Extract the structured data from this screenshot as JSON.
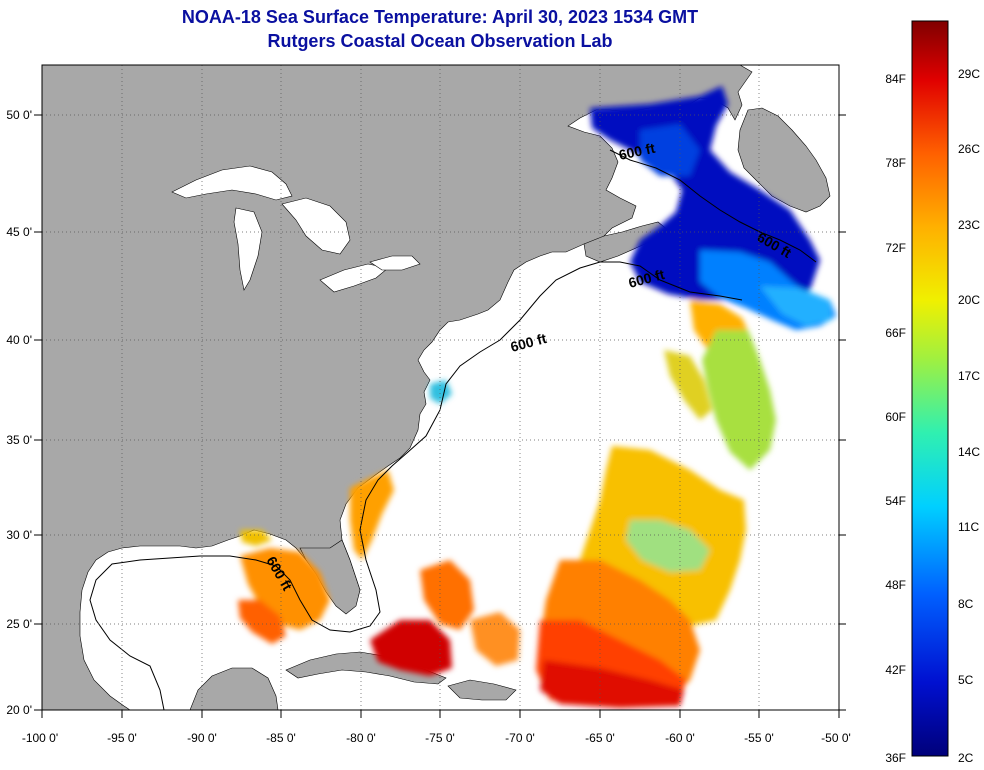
{
  "title": {
    "line1": "NOAA-18 Sea Surface Temperature:  April 30, 2023 1534 GMT",
    "line2": "Rutgers Coastal Ocean Observation Lab"
  },
  "axes": {
    "longitude_ticks": [
      "-100 0'",
      "-95 0'",
      "-90 0'",
      "-85 0'",
      "-80 0'",
      "-75 0'",
      "-70 0'",
      "-65 0'",
      "-60 0'",
      "-55 0'",
      "-50 0'"
    ],
    "latitude_ticks": [
      "50 0'",
      "45 0'",
      "40 0'",
      "35 0'",
      "30 0'",
      "25 0'",
      "20 0'"
    ],
    "lon_range": [
      -100,
      -50
    ],
    "lat_range": [
      20,
      52
    ],
    "grid": "dotted"
  },
  "colorbar": {
    "fahrenheit_labels": [
      "84F",
      "78F",
      "72F",
      "66F",
      "60F",
      "54F",
      "48F",
      "42F",
      "36F"
    ],
    "celsius_labels": [
      "29C",
      "26C",
      "23C",
      "20C",
      "17C",
      "14C",
      "11C",
      "8C",
      "5C",
      "2C"
    ],
    "range_c": [
      2,
      31
    ]
  },
  "contour_labels": [
    "600 ft",
    "600 ft",
    "600 ft",
    "600 ft",
    "600 ft"
  ],
  "colors": {
    "land": "#a8a8a8",
    "ocean_no_data": "#ffffff",
    "title": "#0a10a0"
  }
}
